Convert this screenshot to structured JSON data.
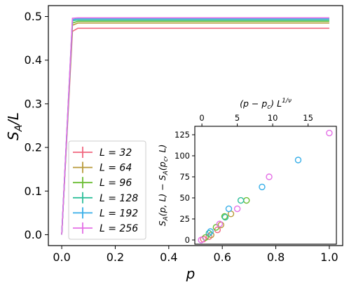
{
  "chart_data": [
    {
      "type": "line",
      "xlabel": "p",
      "ylabel": "S_A/L",
      "xlim": [
        -0.05,
        1.05
      ],
      "ylim": [
        -0.025,
        0.525
      ],
      "xticks": [
        0.0,
        0.2,
        0.4,
        0.6,
        0.8,
        1.0
      ],
      "xticklabels": [
        "0.0",
        "0.2",
        "0.4",
        "0.6",
        "0.8",
        "1.0"
      ],
      "yticks": [
        0.0,
        0.1,
        0.2,
        0.3,
        0.4,
        0.5
      ],
      "yticklabels": [
        "0.0",
        "0.1",
        "0.2",
        "0.3",
        "0.4",
        "0.5"
      ],
      "grid": false,
      "legend": "lower-left",
      "series": [
        {
          "name": "L = 32",
          "color": "#f0677f",
          "x": [
            0.0,
            0.04,
            0.06,
            1.0
          ],
          "y": [
            0.0,
            0.466,
            0.473,
            0.473
          ]
        },
        {
          "name": "L = 64",
          "color": "#b89a3a",
          "x": [
            0.0,
            0.04,
            0.06,
            1.0
          ],
          "y": [
            0.0,
            0.48,
            0.485,
            0.485
          ]
        },
        {
          "name": "L = 96",
          "color": "#6bbd33",
          "x": [
            0.0,
            0.04,
            0.06,
            1.0
          ],
          "y": [
            0.0,
            0.485,
            0.489,
            0.489
          ]
        },
        {
          "name": "L = 128",
          "color": "#2fbf9a",
          "x": [
            0.0,
            0.04,
            0.06,
            1.0
          ],
          "y": [
            0.0,
            0.49,
            0.492,
            0.492
          ]
        },
        {
          "name": "L = 192",
          "color": "#36aee8",
          "x": [
            0.0,
            0.04,
            0.06,
            1.0
          ],
          "y": [
            0.0,
            0.493,
            0.495,
            0.495
          ]
        },
        {
          "name": "L = 256",
          "color": "#e46fe6",
          "x": [
            0.0,
            0.04,
            0.06,
            1.0
          ],
          "y": [
            0.0,
            0.496,
            0.497,
            0.497
          ]
        }
      ]
    },
    {
      "type": "scatter",
      "ylabel": "S_A(p, L) − S_A(p_c, L)",
      "top_xlabel": "(p − p_c) L^{1/ν}",
      "xlim": [
        -1.0,
        19.0
      ],
      "ylim": [
        -5,
        135
      ],
      "xticks": [
        0,
        5,
        10,
        15
      ],
      "xticklabels": [
        "0",
        "5",
        "10",
        "15"
      ],
      "yticks": [
        0,
        25,
        50,
        75,
        100,
        125
      ],
      "yticklabels": [
        "0",
        "25",
        "50",
        "75",
        "100",
        "125"
      ],
      "marker": "open-circle",
      "series": [
        {
          "name": "L = 32",
          "color": "#f0677f",
          "x": [
            0.2,
            1.0,
            2.2
          ],
          "y": [
            1,
            4,
            12
          ]
        },
        {
          "name": "L = 64",
          "color": "#b89a3a",
          "x": [
            1.3,
            2.7,
            4.1
          ],
          "y": [
            6,
            18,
            31
          ]
        },
        {
          "name": "L = 96",
          "color": "#6bbd33",
          "x": [
            0.5,
            2.0,
            3.2,
            6.3
          ],
          "y": [
            3,
            15,
            28,
            47
          ]
        },
        {
          "name": "L = 128",
          "color": "#2fbf9a",
          "x": [
            1.0,
            3.3,
            5.5
          ],
          "y": [
            8,
            27,
            47
          ]
        },
        {
          "name": "L = 192",
          "color": "#36aee8",
          "x": [
            1.2,
            3.8,
            8.5,
            13.6
          ],
          "y": [
            10,
            37,
            63,
            95
          ]
        },
        {
          "name": "L = 256",
          "color": "#e46fe6",
          "x": [
            -0.1,
            2.5,
            5.0,
            9.5,
            18.0
          ],
          "y": [
            0,
            19,
            37,
            75,
            127
          ]
        }
      ]
    }
  ]
}
